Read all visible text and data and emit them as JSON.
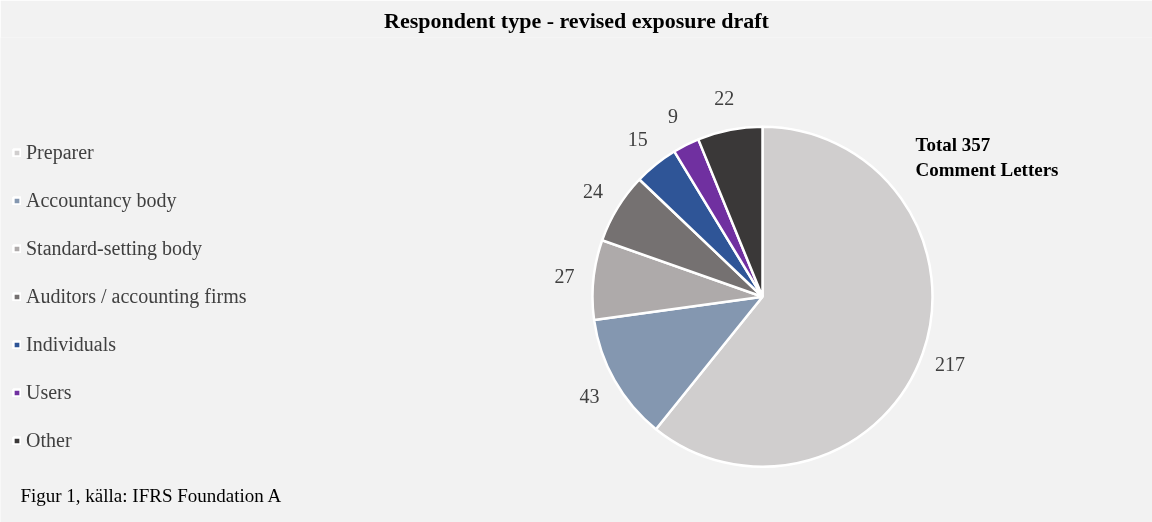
{
  "chart_data": {
    "type": "pie",
    "title": "Respondent type - revised exposure draft",
    "categories": [
      "Preparer",
      "Accountancy body",
      "Standard-setting body",
      "Auditors / accounting firms",
      "Individuals",
      "Users",
      "Other"
    ],
    "values": [
      217,
      43,
      27,
      24,
      15,
      9,
      22
    ],
    "colors": [
      "#d0cece",
      "#8497b0",
      "#aeaaaa",
      "#757171",
      "#2f5597",
      "#7030a0",
      "#3a3838"
    ],
    "data_labels": true,
    "legend": "left",
    "annotations": [
      "Total 357\nComment Letters",
      "Figur 1, källa: IFRS Foundation A"
    ]
  }
}
